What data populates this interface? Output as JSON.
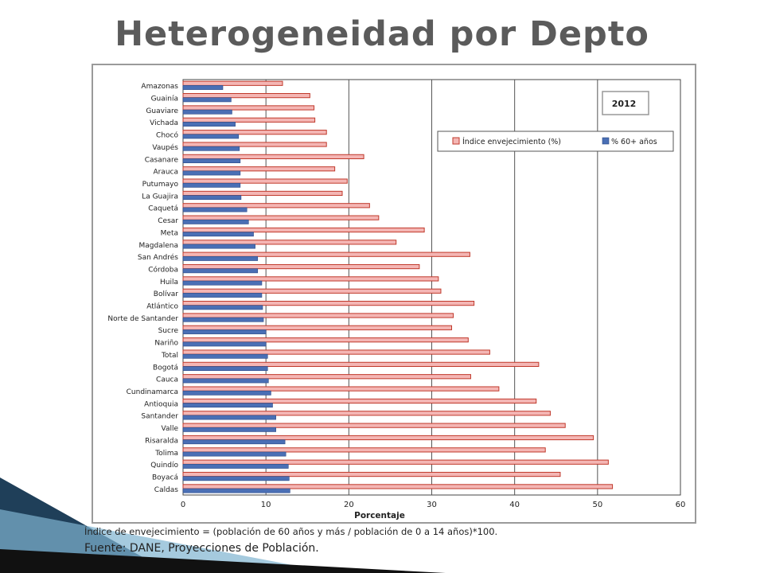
{
  "slide": {
    "title": "Heterogeneidad por Depto",
    "footnote": "Índice de envejecimiento = (población de 60 años y más / población de 0 a 14 años)*100.",
    "source": "Fuente: DANE, Proyecciones de Población."
  },
  "colors": {
    "index_fill": "#f4b6b4",
    "index_stroke": "#c0392b",
    "pct_fill": "#4a6fb5",
    "pct_stroke": "#2c4a86",
    "grid": "#555555",
    "deco_dark": "#1f3f59",
    "deco_light": "#7fb3d0"
  },
  "chart_data": {
    "type": "bar",
    "orientation": "horizontal",
    "year_label": "2012",
    "xlabel": "Porcentaje",
    "xlim": [
      0,
      60
    ],
    "xticks": [
      0,
      10,
      20,
      30,
      40,
      50,
      60
    ],
    "grid": true,
    "legend_position": "top-right",
    "categories": [
      "Amazonas",
      "Guainía",
      "Guaviare",
      "Vichada",
      "Chocó",
      "Vaupés",
      "Casanare",
      "Arauca",
      "Putumayo",
      "La Guajira",
      "Caquetá",
      "Cesar",
      "Meta",
      "Magdalena",
      "San Andrés",
      "Córdoba",
      "Huila",
      "Bolívar",
      "Atlántico",
      "Norte de Santander",
      "Sucre",
      "Nariño",
      "Total",
      "Bogotá",
      "Cauca",
      "Cundinamarca",
      "Antioquia",
      "Santander",
      "Valle",
      "Risaralda",
      "Tolima",
      "Quindío",
      "Boyacá",
      "Caldas"
    ],
    "series": [
      {
        "name": "Índice envejecimiento (%)",
        "values": [
          12.0,
          15.3,
          15.8,
          15.9,
          17.3,
          17.3,
          21.8,
          18.3,
          19.8,
          19.2,
          22.5,
          23.6,
          29.1,
          25.7,
          34.6,
          28.5,
          30.8,
          31.1,
          35.1,
          32.6,
          32.4,
          34.4,
          37.0,
          42.9,
          34.7,
          38.1,
          42.6,
          44.3,
          46.1,
          49.5,
          43.7,
          51.3,
          45.5,
          51.8
        ]
      },
      {
        "name": "% 60+ años",
        "values": [
          4.8,
          5.8,
          5.9,
          6.3,
          6.7,
          6.8,
          6.9,
          6.9,
          6.9,
          7.0,
          7.7,
          7.9,
          8.5,
          8.7,
          9.0,
          9.0,
          9.5,
          9.5,
          9.6,
          9.7,
          10.0,
          10.0,
          10.2,
          10.2,
          10.3,
          10.6,
          10.8,
          11.2,
          11.2,
          12.3,
          12.4,
          12.7,
          12.8,
          12.9
        ]
      }
    ]
  }
}
